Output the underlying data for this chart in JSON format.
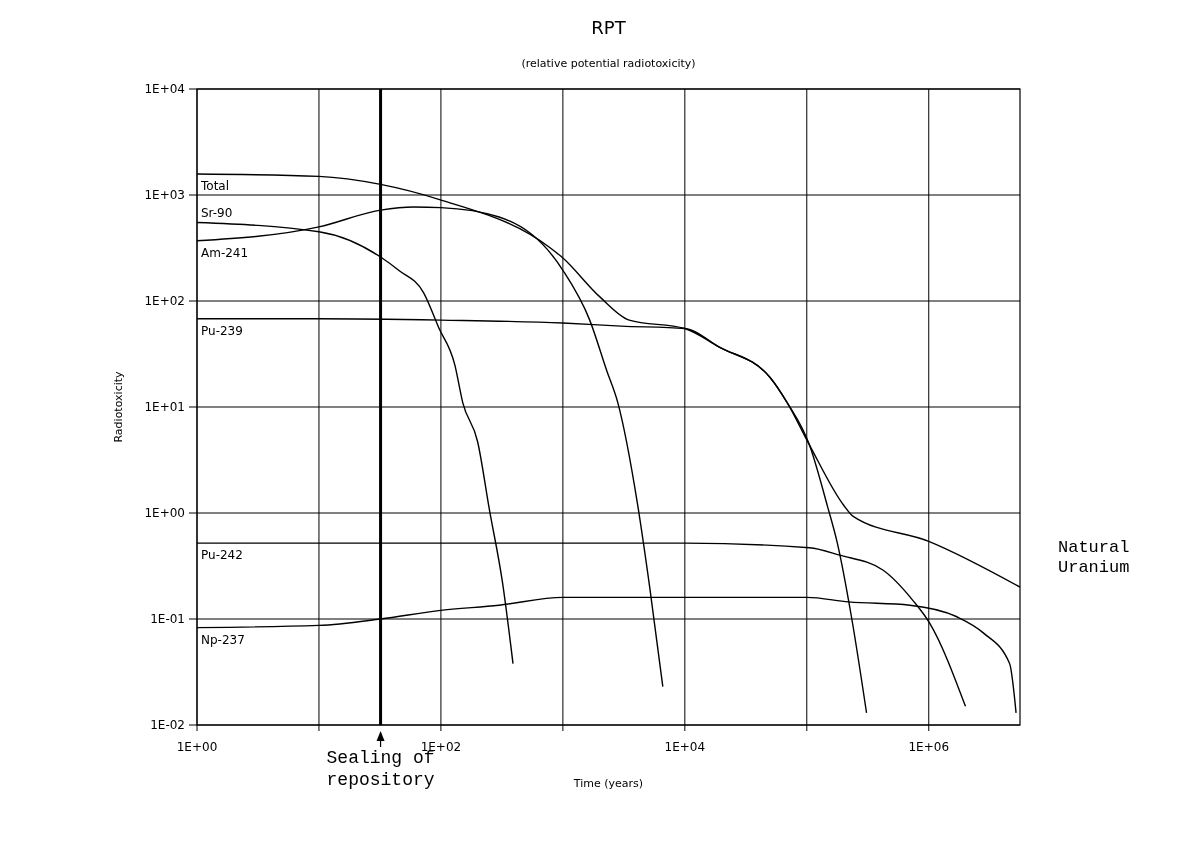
{
  "chart_data": {
    "type": "line",
    "title": "RPT",
    "subtitle": "(relative potential radiotoxicity)",
    "xlabel": "Time (years)",
    "ylabel": "Radiotoxicity",
    "log": "xy",
    "grid": true,
    "legend": false,
    "marker": "none",
    "line_style": "solid",
    "xlim": [
      1,
      5600000
    ],
    "ylim": [
      0.01,
      10000
    ],
    "xticks": [
      {
        "value": 1,
        "label": "1E+00"
      },
      {
        "value": 10,
        "label": null
      },
      {
        "value": 100,
        "label": "1E+02"
      },
      {
        "value": 1000,
        "label": null
      },
      {
        "value": 10000,
        "label": "1E+04"
      },
      {
        "value": 100000,
        "label": null
      },
      {
        "value": 1000000,
        "label": "1E+06"
      }
    ],
    "yticks": [
      {
        "value": 10000,
        "label": "1E+04"
      },
      {
        "value": 1000,
        "label": "1E+03"
      },
      {
        "value": 100,
        "label": "1E+02"
      },
      {
        "value": 10,
        "label": "1E+01"
      },
      {
        "value": 1,
        "label": "1E+00"
      },
      {
        "value": 0.1,
        "label": "1E-01"
      },
      {
        "value": 0.01,
        "label": "1E-02"
      }
    ],
    "ref_lines": [
      {
        "axis": "x",
        "value": 32,
        "label": "Sealing of repository",
        "color": "#000000"
      }
    ],
    "annotations": [
      "Natural Uranium"
    ],
    "series": [
      {
        "name": "Total",
        "color": "#000000",
        "x": [
          1,
          10,
          32,
          96,
          780,
          980,
          2000,
          3500,
          10000,
          19000,
          50000,
          69000,
          105000,
          200000,
          240000,
          1000000,
          5600000
        ],
        "values": [
          1580,
          1500,
          1260,
          910,
          320,
          260,
          110,
          66,
          55,
          37,
          19,
          11,
          4.4,
          1.19,
          0.93,
          0.54,
          0.2
        ]
      },
      {
        "name": "Sr-90",
        "color": "#000000",
        "x": [
          1,
          10,
          32,
          45,
          72,
          96,
          130,
          151,
          200,
          250,
          320,
          390
        ],
        "values": [
          550,
          450,
          260,
          195,
          120,
          56,
          25,
          11,
          4.7,
          1.07,
          0.22,
          0.038
        ]
      },
      {
        "name": "Am-241",
        "color": "#000000",
        "x": [
          1,
          10,
          32,
          60,
          100,
          300,
          1000,
          1660,
          2290,
          2820,
          4100,
          5150,
          6600
        ],
        "values": [
          370,
          500,
          720,
          770,
          760,
          620,
          195,
          66,
          22,
          11,
          1.2,
          0.2,
          0.023
        ]
      },
      {
        "name": "Pu-239",
        "color": "#000000",
        "x": [
          1,
          10,
          100,
          1000,
          3000,
          10000,
          19000,
          50000,
          69000,
          105000,
          148000,
          178000,
          234000,
          309000
        ],
        "values": [
          68,
          68,
          66,
          62,
          58,
          55,
          37,
          19,
          11,
          4.4,
          1.15,
          0.52,
          0.1,
          0.013
        ]
      },
      {
        "name": "Pu-242",
        "color": "#000000",
        "x": [
          1,
          10000,
          105000,
          186000,
          420000,
          740000,
          1020000,
          2000000
        ],
        "values": [
          0.52,
          0.52,
          0.47,
          0.4,
          0.29,
          0.15,
          0.091,
          0.015
        ]
      },
      {
        "name": "Np-237",
        "color": "#000000",
        "x": [
          1,
          10,
          32,
          96,
          300,
          1000,
          10000,
          100000,
          220000,
          700000,
          1700000,
          2800000,
          4600000,
          5200000
        ],
        "values": [
          0.083,
          0.087,
          0.1,
          0.12,
          0.135,
          0.16,
          0.16,
          0.16,
          0.145,
          0.135,
          0.105,
          0.074,
          0.038,
          0.013
        ]
      }
    ]
  }
}
